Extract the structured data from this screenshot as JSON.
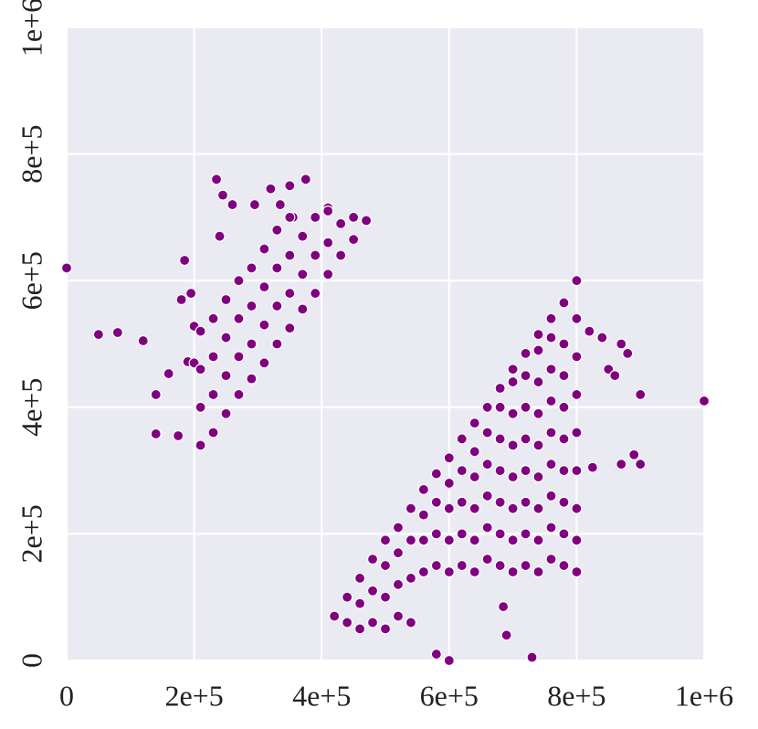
{
  "chart_data": {
    "type": "scatter",
    "color": "#800080",
    "grid": true,
    "xlim": [
      0,
      1000000
    ],
    "ylim": [
      0,
      1000000
    ],
    "xticks": [
      0,
      {
        "value": 200000,
        "label": "2e+5"
      },
      {
        "value": 400000,
        "label": "4e+5"
      },
      {
        "value": 600000,
        "label": "6e+5"
      },
      {
        "value": 800000,
        "label": "8e+5"
      },
      {
        "value": 1000000,
        "label": "1e+6"
      }
    ],
    "yticks": [
      0,
      {
        "value": 200000,
        "label": "2e+5"
      },
      {
        "value": 400000,
        "label": "4e+5"
      },
      {
        "value": 600000,
        "label": "6e+5"
      },
      {
        "value": 800000,
        "label": "8e+5"
      },
      {
        "value": 1000000,
        "label": "1e+6"
      }
    ],
    "x": [
      0,
      50000,
      80000,
      120000,
      140000,
      140000,
      160000,
      175000,
      180000,
      185000,
      190000,
      195000,
      200000,
      200000,
      235000,
      240000,
      245000,
      260000,
      295000,
      320000,
      350000,
      375000,
      335000,
      355000,
      410000,
      580000,
      600000,
      730000,
      685000,
      690000,
      820000,
      840000,
      870000,
      880000,
      900000,
      870000,
      890000,
      900000,
      1000000,
      850000,
      860000,
      825000,
      420000,
      440000,
      440000,
      460000,
      460000,
      460000,
      480000,
      480000,
      480000,
      500000,
      500000,
      500000,
      500000,
      520000,
      520000,
      520000,
      520000,
      540000,
      540000,
      540000,
      540000,
      560000,
      560000,
      560000,
      560000,
      580000,
      580000,
      580000,
      580000,
      600000,
      600000,
      600000,
      600000,
      600000,
      620000,
      620000,
      620000,
      620000,
      620000,
      640000,
      640000,
      640000,
      640000,
      640000,
      640000,
      660000,
      660000,
      660000,
      660000,
      660000,
      660000,
      680000,
      680000,
      680000,
      680000,
      680000,
      680000,
      680000,
      700000,
      700000,
      700000,
      700000,
      700000,
      700000,
      700000,
      700000,
      720000,
      720000,
      720000,
      720000,
      720000,
      720000,
      720000,
      720000,
      740000,
      740000,
      740000,
      740000,
      740000,
      740000,
      740000,
      740000,
      740000,
      760000,
      760000,
      760000,
      760000,
      760000,
      760000,
      760000,
      760000,
      760000,
      780000,
      780000,
      780000,
      780000,
      780000,
      780000,
      780000,
      780000,
      780000,
      800000,
      800000,
      800000,
      800000,
      800000,
      800000,
      800000,
      800000,
      800000,
      210000,
      210000,
      210000,
      210000,
      230000,
      230000,
      230000,
      230000,
      250000,
      250000,
      250000,
      250000,
      270000,
      270000,
      270000,
      270000,
      290000,
      290000,
      290000,
      290000,
      310000,
      310000,
      310000,
      310000,
      330000,
      330000,
      330000,
      330000,
      350000,
      350000,
      350000,
      350000,
      370000,
      370000,
      370000,
      390000,
      390000,
      390000,
      410000,
      410000,
      410000,
      430000,
      430000,
      450000,
      450000,
      470000
    ],
    "values": [
      620000,
      515000,
      518000,
      505000,
      420000,
      358000,
      453000,
      355000,
      570000,
      632000,
      472000,
      580000,
      528000,
      470000,
      760000,
      670000,
      735000,
      720000,
      720000,
      745000,
      750000,
      760000,
      720000,
      700000,
      715000,
      10000,
      0,
      5000,
      85000,
      40000,
      520000,
      510000,
      500000,
      485000,
      420000,
      310000,
      325000,
      310000,
      410000,
      460000,
      450000,
      305000,
      70000,
      60000,
      100000,
      50000,
      90000,
      130000,
      60000,
      110000,
      160000,
      50000,
      100000,
      150000,
      190000,
      70000,
      120000,
      170000,
      210000,
      60000,
      130000,
      190000,
      240000,
      140000,
      190000,
      230000,
      270000,
      150000,
      200000,
      250000,
      295000,
      140000,
      190000,
      240000,
      280000,
      320000,
      150000,
      200000,
      250000,
      300000,
      350000,
      140000,
      190000,
      240000,
      290000,
      330000,
      375000,
      160000,
      210000,
      260000,
      310000,
      360000,
      400000,
      150000,
      200000,
      250000,
      300000,
      350000,
      400000,
      430000,
      140000,
      190000,
      240000,
      290000,
      340000,
      390000,
      440000,
      460000,
      150000,
      200000,
      250000,
      300000,
      350000,
      400000,
      450000,
      485000,
      140000,
      190000,
      240000,
      290000,
      340000,
      390000,
      440000,
      490000,
      515000,
      160000,
      210000,
      260000,
      310000,
      360000,
      410000,
      460000,
      510000,
      540000,
      150000,
      200000,
      250000,
      300000,
      350000,
      400000,
      450000,
      500000,
      565000,
      140000,
      190000,
      240000,
      300000,
      360000,
      420000,
      480000,
      540000,
      600000,
      340000,
      400000,
      460000,
      520000,
      360000,
      420000,
      480000,
      540000,
      390000,
      450000,
      510000,
      570000,
      420000,
      480000,
      540000,
      600000,
      445000,
      500000,
      560000,
      620000,
      470000,
      530000,
      590000,
      650000,
      500000,
      560000,
      620000,
      680000,
      525000,
      580000,
      640000,
      700000,
      555000,
      610000,
      670000,
      580000,
      640000,
      700000,
      610000,
      660000,
      710000,
      640000,
      690000,
      665000,
      700000,
      695000
    ]
  }
}
